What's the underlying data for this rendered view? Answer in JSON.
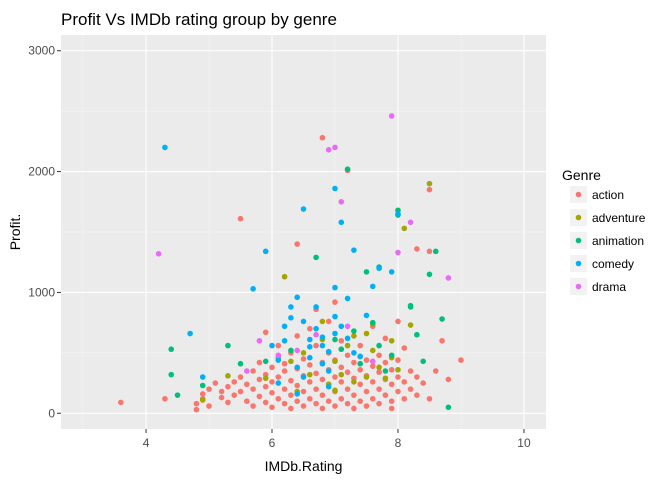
{
  "chart_data": {
    "type": "scatter",
    "title": "Profit Vs IMDb rating group by genre",
    "xlabel": "IMDb.Rating",
    "ylabel": "Profit.",
    "xlim": [
      2.65,
      10.35
    ],
    "ylim": [
      -130,
      3130
    ],
    "x_ticks": [
      4,
      6,
      8,
      10
    ],
    "y_ticks": [
      0,
      1000,
      2000,
      3000
    ],
    "x_tick_labels": [
      "4",
      "6",
      "8",
      "10"
    ],
    "y_tick_labels": [
      "0",
      "1000",
      "2000",
      "3000"
    ],
    "grid": true,
    "legend_title": "Genre",
    "legend_position": "right",
    "series": [
      {
        "name": "action",
        "color": "#F8766D",
        "points": [
          [
            3.6,
            90
          ],
          [
            4.3,
            120
          ],
          [
            4.8,
            80
          ],
          [
            4.8,
            30
          ],
          [
            4.9,
            160
          ],
          [
            4.9,
            120
          ],
          [
            5.0,
            60
          ],
          [
            5.0,
            200
          ],
          [
            5.1,
            250
          ],
          [
            5.2,
            180
          ],
          [
            5.2,
            130
          ],
          [
            5.3,
            90
          ],
          [
            5.3,
            220
          ],
          [
            5.4,
            260
          ],
          [
            5.4,
            150
          ],
          [
            5.5,
            1610
          ],
          [
            5.5,
            300
          ],
          [
            5.5,
            180
          ],
          [
            5.6,
            100
          ],
          [
            5.6,
            240
          ],
          [
            5.7,
            60
          ],
          [
            5.7,
            350
          ],
          [
            5.7,
            200
          ],
          [
            5.8,
            140
          ],
          [
            5.8,
            280
          ],
          [
            5.8,
            420
          ],
          [
            5.9,
            90
          ],
          [
            5.9,
            220
          ],
          [
            5.9,
            320
          ],
          [
            5.9,
            670
          ],
          [
            6.0,
            170
          ],
          [
            6.0,
            260
          ],
          [
            6.0,
            380
          ],
          [
            6.0,
            50
          ],
          [
            6.1,
            120
          ],
          [
            6.1,
            300
          ],
          [
            6.1,
            460
          ],
          [
            6.1,
            560
          ],
          [
            6.2,
            80
          ],
          [
            6.2,
            200
          ],
          [
            6.2,
            350
          ],
          [
            6.2,
            410
          ],
          [
            6.3,
            150
          ],
          [
            6.3,
            270
          ],
          [
            6.3,
            500
          ],
          [
            6.3,
            40
          ],
          [
            6.4,
            1400
          ],
          [
            6.4,
            100
          ],
          [
            6.4,
            230
          ],
          [
            6.4,
            370
          ],
          [
            6.4,
            640
          ],
          [
            6.5,
            180
          ],
          [
            6.5,
            310
          ],
          [
            6.5,
            450
          ],
          [
            6.5,
            60
          ],
          [
            6.6,
            120
          ],
          [
            6.6,
            260
          ],
          [
            6.6,
            400
          ],
          [
            6.6,
            700
          ],
          [
            6.7,
            80
          ],
          [
            6.7,
            200
          ],
          [
            6.7,
            330
          ],
          [
            6.7,
            560
          ],
          [
            6.7,
            860
          ],
          [
            6.8,
            2280
          ],
          [
            6.8,
            150
          ],
          [
            6.8,
            280
          ],
          [
            6.8,
            420
          ],
          [
            6.8,
            40
          ],
          [
            6.9,
            100
          ],
          [
            6.9,
            240
          ],
          [
            6.9,
            360
          ],
          [
            6.9,
            500
          ],
          [
            6.9,
            760
          ],
          [
            7.0,
            60
          ],
          [
            7.0,
            180
          ],
          [
            7.0,
            300
          ],
          [
            7.0,
            440
          ],
          [
            7.0,
            920
          ],
          [
            7.1,
            120
          ],
          [
            7.1,
            260
          ],
          [
            7.1,
            380
          ],
          [
            7.1,
            600
          ],
          [
            7.2,
            2010
          ],
          [
            7.2,
            80
          ],
          [
            7.2,
            200
          ],
          [
            7.2,
            340
          ],
          [
            7.2,
            480
          ],
          [
            7.3,
            150
          ],
          [
            7.3,
            290
          ],
          [
            7.3,
            420
          ],
          [
            7.3,
            40
          ],
          [
            7.4,
            100
          ],
          [
            7.4,
            240
          ],
          [
            7.4,
            360
          ],
          [
            7.4,
            560
          ],
          [
            7.5,
            180
          ],
          [
            7.5,
            310
          ],
          [
            7.5,
            440
          ],
          [
            7.5,
            60
          ],
          [
            7.6,
            120
          ],
          [
            7.6,
            260
          ],
          [
            7.6,
            390
          ],
          [
            7.6,
            720
          ],
          [
            7.7,
            80
          ],
          [
            7.7,
            200
          ],
          [
            7.7,
            340
          ],
          [
            7.7,
            480
          ],
          [
            7.8,
            150
          ],
          [
            7.8,
            280
          ],
          [
            7.8,
            420
          ],
          [
            7.8,
            620
          ],
          [
            7.9,
            100
          ],
          [
            7.9,
            240
          ],
          [
            7.9,
            360
          ],
          [
            7.9,
            40
          ],
          [
            8.0,
            180
          ],
          [
            8.0,
            300
          ],
          [
            8.0,
            440
          ],
          [
            8.0,
            760
          ],
          [
            8.1,
            120
          ],
          [
            8.1,
            260
          ],
          [
            8.1,
            540
          ],
          [
            8.2,
            200
          ],
          [
            8.2,
            350
          ],
          [
            8.3,
            150
          ],
          [
            8.3,
            300
          ],
          [
            8.3,
            1360
          ],
          [
            8.4,
            250
          ],
          [
            8.5,
            1850
          ],
          [
            8.5,
            120
          ],
          [
            8.6,
            350
          ],
          [
            8.7,
            600
          ],
          [
            8.8,
            280
          ],
          [
            9.0,
            440
          ],
          [
            8.5,
            1340
          ]
        ]
      },
      {
        "name": "adventure",
        "color": "#A3A500",
        "points": [
          [
            4.9,
            110
          ],
          [
            5.3,
            310
          ],
          [
            5.9,
            290
          ],
          [
            6.2,
            1130
          ],
          [
            6.4,
            180
          ],
          [
            6.5,
            500
          ],
          [
            6.6,
            320
          ],
          [
            6.8,
            610
          ],
          [
            6.9,
            240
          ],
          [
            7.0,
            430
          ],
          [
            7.1,
            320
          ],
          [
            7.2,
            560
          ],
          [
            7.3,
            260
          ],
          [
            7.4,
            470
          ],
          [
            7.5,
            660
          ],
          [
            7.5,
            300
          ],
          [
            7.6,
            520
          ],
          [
            7.6,
            740
          ],
          [
            7.7,
            380
          ],
          [
            7.8,
            290
          ],
          [
            7.9,
            460
          ],
          [
            8.0,
            360
          ],
          [
            8.1,
            1530
          ],
          [
            8.2,
            730
          ],
          [
            8.5,
            1900
          ],
          [
            6.8,
            760
          ],
          [
            7.3,
            640
          ],
          [
            7.9,
            600
          ],
          [
            6.3,
            430
          ],
          [
            7.0,
            190
          ]
        ]
      },
      {
        "name": "animation",
        "color": "#00BF7D",
        "points": [
          [
            4.4,
            530
          ],
          [
            4.4,
            320
          ],
          [
            4.5,
            150
          ],
          [
            4.9,
            230
          ],
          [
            5.3,
            560
          ],
          [
            5.5,
            410
          ],
          [
            5.9,
            430
          ],
          [
            6.3,
            520
          ],
          [
            6.7,
            1290
          ],
          [
            7.0,
            610
          ],
          [
            7.2,
            2020
          ],
          [
            7.3,
            680
          ],
          [
            7.4,
            410
          ],
          [
            7.5,
            1170
          ],
          [
            7.6,
            750
          ],
          [
            7.7,
            1210
          ],
          [
            7.7,
            560
          ],
          [
            8.0,
            1680
          ],
          [
            8.0,
            1640
          ],
          [
            8.2,
            890
          ],
          [
            8.2,
            880
          ],
          [
            8.3,
            650
          ],
          [
            8.4,
            430
          ],
          [
            8.5,
            1150
          ],
          [
            8.6,
            1340
          ],
          [
            8.7,
            780
          ],
          [
            8.8,
            50
          ],
          [
            7.9,
            480
          ],
          [
            7.1,
            530
          ],
          [
            7.8,
            350
          ]
        ]
      },
      {
        "name": "comedy",
        "color": "#00B0F6",
        "points": [
          [
            4.3,
            2200
          ],
          [
            4.7,
            660
          ],
          [
            4.9,
            300
          ],
          [
            5.7,
            1030
          ],
          [
            5.9,
            1340
          ],
          [
            6.0,
            560
          ],
          [
            6.1,
            440
          ],
          [
            6.2,
            720
          ],
          [
            6.3,
            790
          ],
          [
            6.3,
            880
          ],
          [
            6.4,
            380
          ],
          [
            6.4,
            960
          ],
          [
            6.5,
            1690
          ],
          [
            6.5,
            300
          ],
          [
            6.6,
            610
          ],
          [
            6.6,
            550
          ],
          [
            6.7,
            880
          ],
          [
            6.7,
            700
          ],
          [
            6.8,
            630
          ],
          [
            6.8,
            410
          ],
          [
            6.9,
            510
          ],
          [
            6.9,
            350
          ],
          [
            7.0,
            1860
          ],
          [
            7.0,
            1040
          ],
          [
            7.0,
            800
          ],
          [
            7.1,
            1580
          ],
          [
            7.1,
            720
          ],
          [
            7.2,
            950
          ],
          [
            7.2,
            620
          ],
          [
            7.3,
            1350
          ],
          [
            7.3,
            500
          ],
          [
            7.4,
            470
          ],
          [
            7.6,
            1050
          ],
          [
            7.7,
            1200
          ],
          [
            7.9,
            1170
          ],
          [
            8.0,
            1650
          ],
          [
            6.2,
            600
          ],
          [
            6.5,
            760
          ],
          [
            6.8,
            560
          ],
          [
            7.0,
            660
          ],
          [
            6.1,
            250
          ],
          [
            6.4,
            160
          ],
          [
            6.9,
            220
          ],
          [
            6.6,
            460
          ],
          [
            7.5,
            810
          ]
        ]
      },
      {
        "name": "drama",
        "color": "#E76BF3",
        "points": [
          [
            4.2,
            1320
          ],
          [
            6.9,
            2180
          ],
          [
            7.0,
            2200
          ],
          [
            7.1,
            1750
          ],
          [
            7.9,
            2460
          ],
          [
            8.0,
            1330
          ],
          [
            8.2,
            1580
          ],
          [
            8.8,
            1120
          ],
          [
            6.1,
            480
          ],
          [
            5.8,
            600
          ],
          [
            6.7,
            650
          ],
          [
            7.2,
            720
          ],
          [
            6.4,
            520
          ],
          [
            7.6,
            430
          ],
          [
            5.6,
            350
          ]
        ]
      }
    ]
  }
}
